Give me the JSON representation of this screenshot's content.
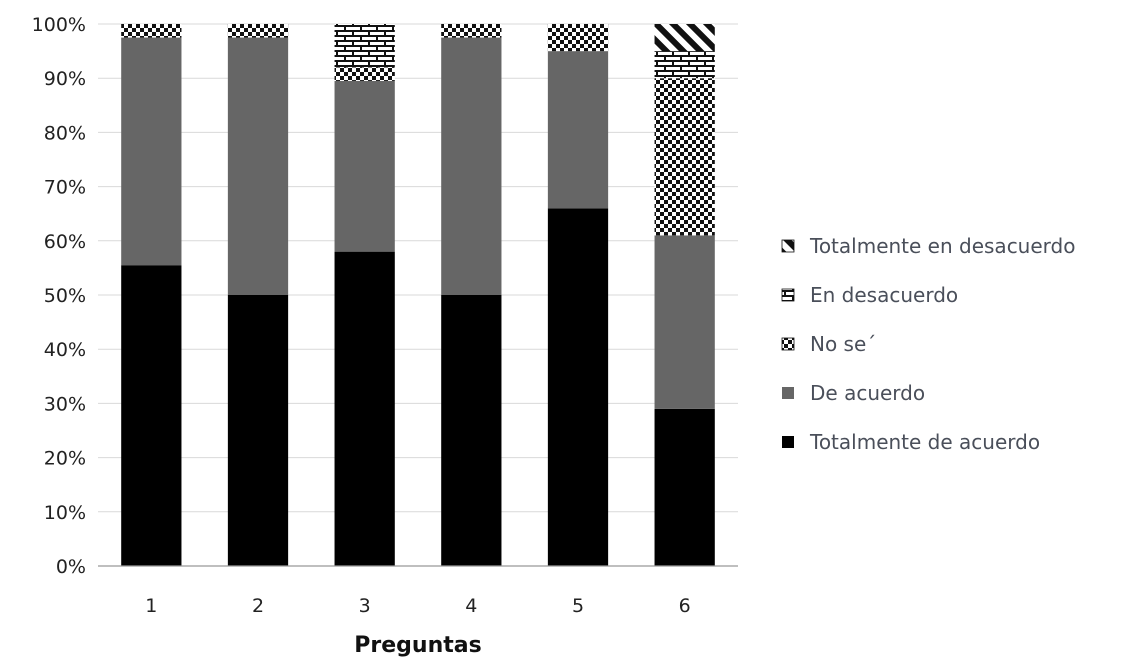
{
  "chart_data": {
    "type": "bar",
    "stacked": true,
    "xlabel": "Preguntas",
    "ylabel": "",
    "ylim": [
      0,
      100
    ],
    "y_ticks": [
      "0%",
      "10%",
      "20%",
      "30%",
      "40%",
      "50%",
      "60%",
      "70%",
      "80%",
      "90%",
      "100%"
    ],
    "categories": [
      "1",
      "2",
      "3",
      "4",
      "5",
      "6"
    ],
    "grid": true,
    "legend_position": "right",
    "series": [
      {
        "name": "Totalmente de acuerdo",
        "key": "totalmente-de-acuerdo",
        "pattern": "solid-black",
        "values": [
          55.5,
          50,
          58,
          50,
          66,
          29
        ]
      },
      {
        "name": "De acuerdo",
        "key": "de-acuerdo",
        "pattern": "solid-gray",
        "values": [
          42,
          47.5,
          31.5,
          47.5,
          29,
          32
        ]
      },
      {
        "name": "No se´",
        "key": "no-se",
        "pattern": "checker",
        "values": [
          2.5,
          2.5,
          2.5,
          2.5,
          5,
          29
        ]
      },
      {
        "name": "En desacuerdo",
        "key": "en-desacuerdo",
        "pattern": "brick",
        "values": [
          0,
          0,
          8,
          0,
          0,
          5
        ]
      },
      {
        "name": "Totalmente en desacuerdo",
        "key": "totalmente-en-desacuerdo",
        "pattern": "diagonal",
        "values": [
          0,
          0,
          0,
          0,
          0,
          5
        ]
      }
    ],
    "legend_order": [
      "totalmente-en-desacuerdo",
      "en-desacuerdo",
      "no-se",
      "de-acuerdo",
      "totalmente-de-acuerdo"
    ]
  }
}
